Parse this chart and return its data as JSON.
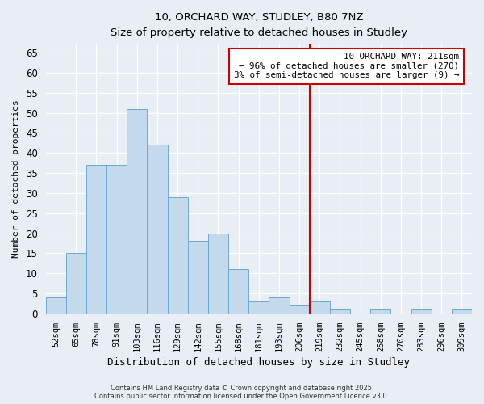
{
  "title_line1": "10, ORCHARD WAY, STUDLEY, B80 7NZ",
  "title_line2": "Size of property relative to detached houses in Studley",
  "xlabel": "Distribution of detached houses by size in Studley",
  "ylabel": "Number of detached properties",
  "categories": [
    "52sqm",
    "65sqm",
    "78sqm",
    "91sqm",
    "103sqm",
    "116sqm",
    "129sqm",
    "142sqm",
    "155sqm",
    "168sqm",
    "181sqm",
    "193sqm",
    "206sqm",
    "219sqm",
    "232sqm",
    "245sqm",
    "258sqm",
    "270sqm",
    "283sqm",
    "296sqm",
    "309sqm"
  ],
  "values": [
    4,
    15,
    37,
    37,
    51,
    42,
    29,
    18,
    20,
    11,
    3,
    4,
    2,
    3,
    1,
    0,
    1,
    0,
    1,
    0,
    1
  ],
  "bar_color": "#c5d9ed",
  "bar_edge_color": "#6aaad4",
  "vline_color": "#cc0000",
  "vline_x_idx": 13,
  "ylim": [
    0,
    67
  ],
  "yticks": [
    0,
    5,
    10,
    15,
    20,
    25,
    30,
    35,
    40,
    45,
    50,
    55,
    60,
    65
  ],
  "annotation_title": "10 ORCHARD WAY: 211sqm",
  "annotation_line1": "← 96% of detached houses are smaller (270)",
  "annotation_line2": "3% of semi-detached houses are larger (9) →",
  "annotation_box_color": "#ffffff",
  "annotation_box_edge": "#cc0000",
  "footer_line1": "Contains HM Land Registry data © Crown copyright and database right 2025.",
  "footer_line2": "Contains public sector information licensed under the Open Government Licence v3.0.",
  "background_color": "#e8eef4",
  "grid_color": "#ffffff",
  "spine_color": "#a0b0c0"
}
